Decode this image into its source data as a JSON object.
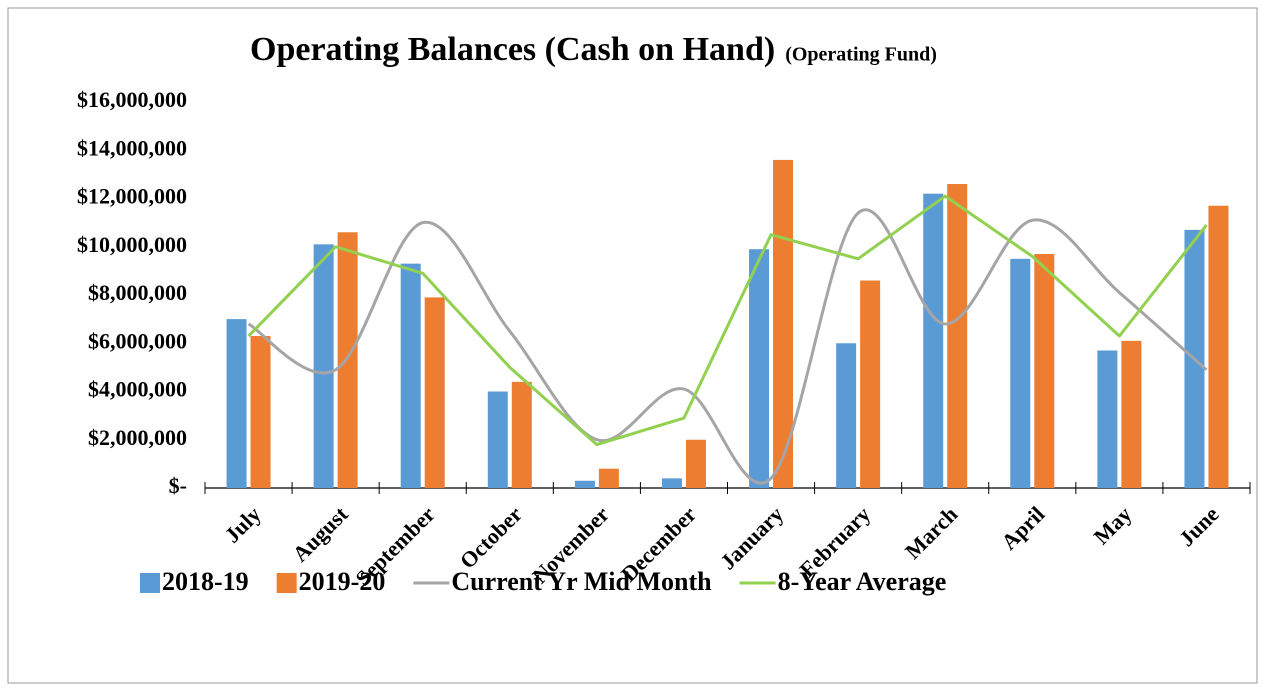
{
  "chart_data": {
    "type": "bar",
    "title": "Operating Balances (Cash on Hand)",
    "subtitle": "(Operating Fund)",
    "categories": [
      "July",
      "August",
      "September",
      "October",
      "November",
      "December",
      "January",
      "February",
      "March",
      "April",
      "May",
      "June"
    ],
    "series": [
      {
        "name": "2018-19",
        "type": "bar",
        "color": "#5b9bd5",
        "values": [
          7000000,
          10100000,
          9300000,
          4000000,
          300000,
          400000,
          9900000,
          6000000,
          12200000,
          9500000,
          5700000,
          10700000
        ]
      },
      {
        "name": "2019-20",
        "type": "bar",
        "color": "#ed7d31",
        "values": [
          6300000,
          10600000,
          7900000,
          4400000,
          800000,
          2000000,
          13600000,
          8600000,
          12600000,
          9700000,
          6100000,
          11700000
        ]
      },
      {
        "name": "Current Yr Mid Month",
        "type": "line",
        "smooth": true,
        "color": "#a5a5a5",
        "values": [
          6800000,
          4900000,
          11000000,
          6500000,
          2000000,
          4100000,
          400000,
          11400000,
          6800000,
          11100000,
          8100000,
          4900000
        ]
      },
      {
        "name": "8-Year Average",
        "type": "line",
        "smooth": false,
        "color": "#92d050",
        "values": [
          6300000,
          10000000,
          8900000,
          5000000,
          1800000,
          2900000,
          10500000,
          9500000,
          12100000,
          9600000,
          6300000,
          10900000
        ]
      }
    ],
    "ylim": [
      0,
      16000000
    ],
    "yticks": [
      {
        "value": 0,
        "label": "$-"
      },
      {
        "value": 2000000,
        "label": "$2,000,000"
      },
      {
        "value": 4000000,
        "label": "$4,000,000"
      },
      {
        "value": 6000000,
        "label": "$6,000,000"
      },
      {
        "value": 8000000,
        "label": "$8,000,000"
      },
      {
        "value": 10000000,
        "label": "$10,000,000"
      },
      {
        "value": 12000000,
        "label": "$12,000,000"
      },
      {
        "value": 14000000,
        "label": "$14,000,000"
      },
      {
        "value": 16000000,
        "label": "$16,000,000"
      }
    ],
    "grid": false,
    "legend": "bottom"
  }
}
